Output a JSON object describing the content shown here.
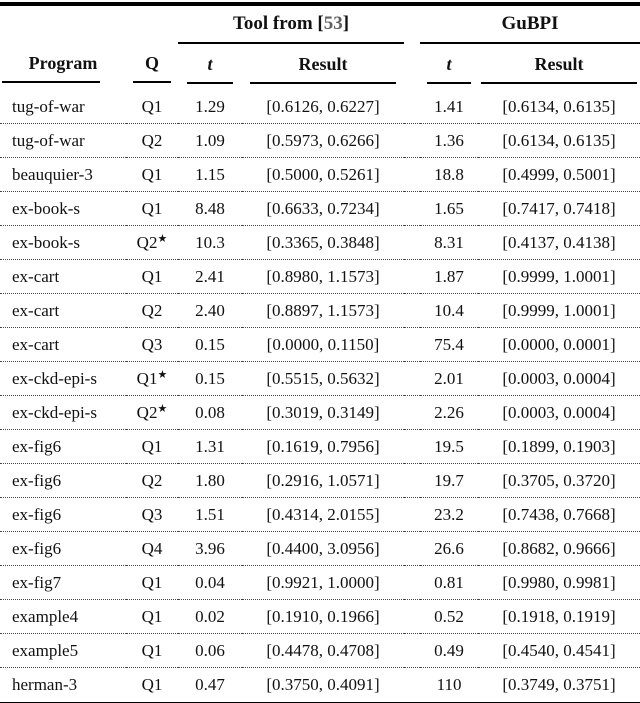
{
  "table": {
    "star_glyph": "★",
    "group_headers": {
      "tool": {
        "prefix": "Tool from [",
        "citation": "53",
        "suffix": "]"
      },
      "gubpi": "GuBPI"
    },
    "columns": {
      "program": "Program",
      "q": "Q",
      "tool_t": "t",
      "tool_result": "Result",
      "gubpi_t": "t",
      "gubpi_result": "Result"
    },
    "rows": [
      {
        "program": "tug-of-war",
        "q": "Q1",
        "star": false,
        "tool_t": "1.29",
        "tool_result": "[0.6126, 0.6227]",
        "gubpi_t": "1.41",
        "gubpi_result": "[0.6134, 0.6135]"
      },
      {
        "program": "tug-of-war",
        "q": "Q2",
        "star": false,
        "tool_t": "1.09",
        "tool_result": "[0.5973, 0.6266]",
        "gubpi_t": "1.36",
        "gubpi_result": "[0.6134, 0.6135]"
      },
      {
        "program": "beauquier-3",
        "q": "Q1",
        "star": false,
        "tool_t": "1.15",
        "tool_result": "[0.5000, 0.5261]",
        "gubpi_t": "18.8",
        "gubpi_result": "[0.4999, 0.5001]"
      },
      {
        "program": "ex-book-s",
        "q": "Q1",
        "star": false,
        "tool_t": "8.48",
        "tool_result": "[0.6633, 0.7234]",
        "gubpi_t": "1.65",
        "gubpi_result": "[0.7417, 0.7418]"
      },
      {
        "program": "ex-book-s",
        "q": "Q2",
        "star": true,
        "tool_t": "10.3",
        "tool_result": "[0.3365, 0.3848]",
        "gubpi_t": "8.31",
        "gubpi_result": "[0.4137, 0.4138]"
      },
      {
        "program": "ex-cart",
        "q": "Q1",
        "star": false,
        "tool_t": "2.41",
        "tool_result": "[0.8980, 1.1573]",
        "gubpi_t": "1.87",
        "gubpi_result": "[0.9999, 1.0001]"
      },
      {
        "program": "ex-cart",
        "q": "Q2",
        "star": false,
        "tool_t": "2.40",
        "tool_result": "[0.8897, 1.1573]",
        "gubpi_t": "10.4",
        "gubpi_result": "[0.9999, 1.0001]"
      },
      {
        "program": "ex-cart",
        "q": "Q3",
        "star": false,
        "tool_t": "0.15",
        "tool_result": "[0.0000, 0.1150]",
        "gubpi_t": "75.4",
        "gubpi_result": "[0.0000, 0.0001]"
      },
      {
        "program": "ex-ckd-epi-s",
        "q": "Q1",
        "star": true,
        "tool_t": "0.15",
        "tool_result": "[0.5515, 0.5632]",
        "gubpi_t": "2.01",
        "gubpi_result": "[0.0003, 0.0004]"
      },
      {
        "program": "ex-ckd-epi-s",
        "q": "Q2",
        "star": true,
        "tool_t": "0.08",
        "tool_result": "[0.3019, 0.3149]",
        "gubpi_t": "2.26",
        "gubpi_result": "[0.0003, 0.0004]"
      },
      {
        "program": "ex-fig6",
        "q": "Q1",
        "star": false,
        "tool_t": "1.31",
        "tool_result": "[0.1619, 0.7956]",
        "gubpi_t": "19.5",
        "gubpi_result": "[0.1899, 0.1903]"
      },
      {
        "program": "ex-fig6",
        "q": "Q2",
        "star": false,
        "tool_t": "1.80",
        "tool_result": "[0.2916, 1.0571]",
        "gubpi_t": "19.7",
        "gubpi_result": "[0.3705, 0.3720]"
      },
      {
        "program": "ex-fig6",
        "q": "Q3",
        "star": false,
        "tool_t": "1.51",
        "tool_result": "[0.4314, 2.0155]",
        "gubpi_t": "23.2",
        "gubpi_result": "[0.7438, 0.7668]"
      },
      {
        "program": "ex-fig6",
        "q": "Q4",
        "star": false,
        "tool_t": "3.96",
        "tool_result": "[0.4400, 3.0956]",
        "gubpi_t": "26.6",
        "gubpi_result": "[0.8682, 0.9666]"
      },
      {
        "program": "ex-fig7",
        "q": "Q1",
        "star": false,
        "tool_t": "0.04",
        "tool_result": "[0.9921, 1.0000]",
        "gubpi_t": "0.81",
        "gubpi_result": "[0.9980, 0.9981]"
      },
      {
        "program": "example4",
        "q": "Q1",
        "star": false,
        "tool_t": "0.02",
        "tool_result": "[0.1910, 0.1966]",
        "gubpi_t": "0.52",
        "gubpi_result": "[0.1918, 0.1919]"
      },
      {
        "program": "example5",
        "q": "Q1",
        "star": false,
        "tool_t": "0.06",
        "tool_result": "[0.4478, 0.4708]",
        "gubpi_t": "0.49",
        "gubpi_result": "[0.4540, 0.4541]"
      },
      {
        "program": "herman-3",
        "q": "Q1",
        "star": false,
        "tool_t": "0.47",
        "tool_result": "[0.3750, 0.4091]",
        "gubpi_t": "110",
        "gubpi_result": "[0.3749, 0.3751]"
      }
    ]
  }
}
